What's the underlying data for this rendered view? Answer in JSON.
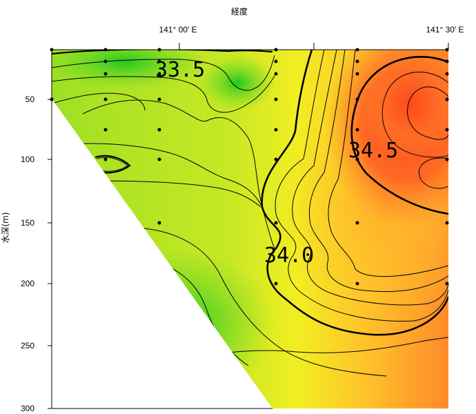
{
  "chart_data": {
    "type": "heatmap",
    "subtype": "contour section",
    "xlabel": "経度",
    "ylabel": "水深(m)",
    "x_ticks": [
      {
        "label": "141° 00′ E",
        "value": 141.0
      },
      {
        "label": "141° 30′ E",
        "value": 141.5
      }
    ],
    "ylim": [
      0,
      300
    ],
    "y_ticks": [
      50,
      100,
      150,
      200,
      250,
      300
    ],
    "y_tick_labels": [
      "50",
      "100",
      "150",
      "200",
      "250",
      "300"
    ],
    "contour_labels": [
      {
        "text": "33.5",
        "value": 33.5
      },
      {
        "text": "34.0",
        "value": 34.0
      },
      {
        "text": "34.5",
        "value": 34.5
      }
    ],
    "colorscale": [
      "#22cc22",
      "#88e022",
      "#eef022",
      "#ffc82a",
      "#ff8a2a",
      "#ff4a1e"
    ],
    "grid": false,
    "legend": "none"
  }
}
